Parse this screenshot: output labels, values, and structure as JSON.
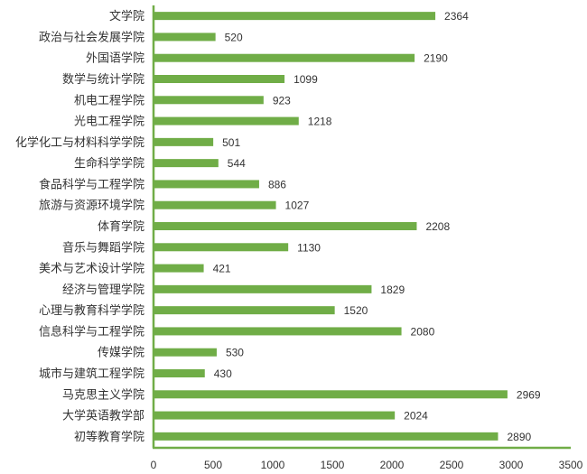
{
  "chart_data": {
    "type": "bar",
    "orientation": "horizontal",
    "title": "",
    "xlabel": "",
    "ylabel": "",
    "categories": [
      "文学院",
      "政治与社会发展学院",
      "外国语学院",
      "数学与统计学院",
      "机电工程学院",
      "光电工程学院",
      "化学化工与材料科学学院",
      "生命科学学院",
      "食品科学与工程学院",
      "旅游与资源环境学院",
      "体育学院",
      "音乐与舞蹈学院",
      "美术与艺术设计学院",
      "经济与管理学院",
      "心理与教育科学学院",
      "信息科学与工程学院",
      "传媒学院",
      "城市与建筑工程学院",
      "马克思主义学院",
      "大学英语教学部",
      "初等教育学院"
    ],
    "values": [
      2364,
      520,
      2190,
      1099,
      923,
      1218,
      501,
      544,
      886,
      1027,
      2208,
      1130,
      421,
      1829,
      1520,
      2080,
      530,
      430,
      2969,
      2024,
      2890
    ],
    "xlim": [
      0,
      3500
    ],
    "xticks": [
      0,
      500,
      1000,
      1500,
      2000,
      2500,
      3000,
      3500
    ],
    "grid": false,
    "legend": "none",
    "colors": {
      "bar": "#70ad47",
      "axis": "#70ad47",
      "text": "#333333"
    }
  }
}
